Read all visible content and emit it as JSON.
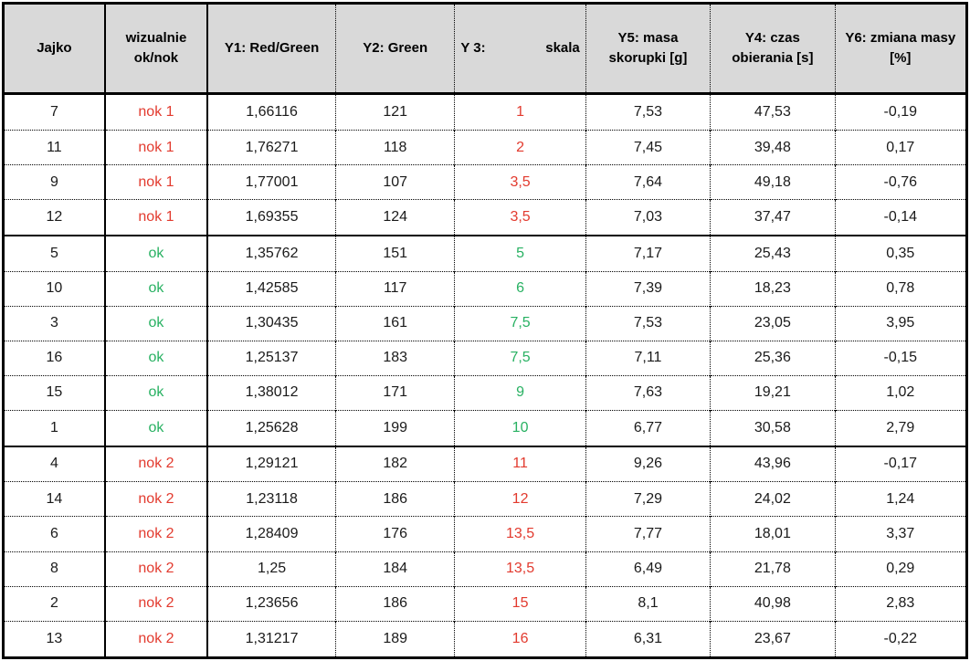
{
  "colors": {
    "red": "#e23a2e",
    "green": "#28b162",
    "header_bg": "#d9d9d9",
    "border": "#000000",
    "text": "#1a1a1a"
  },
  "table": {
    "columns": [
      {
        "id": "jajko",
        "label": "Jajko"
      },
      {
        "id": "visual",
        "label": "wizualnie ok/nok"
      },
      {
        "id": "y1",
        "label": "Y1: Red/Green"
      },
      {
        "id": "y2",
        "label": "Y2: Green"
      },
      {
        "id": "y3",
        "label_left": "Y 3:",
        "label_right": "skala"
      },
      {
        "id": "y5",
        "label": "Y5: masa skorupki [g]"
      },
      {
        "id": "y4",
        "label": "Y4: czas obierania [s]"
      },
      {
        "id": "y6",
        "label": "Y6: zmiana masy [%]"
      }
    ],
    "rows": [
      {
        "group": "nok1",
        "jajko": "7",
        "visual": "nok 1",
        "y1": "1,66116",
        "y2": "121",
        "y3": "1",
        "y5": "7,53",
        "y4": "47,53",
        "y6": "-0,19"
      },
      {
        "group": "nok1",
        "jajko": "11",
        "visual": "nok 1",
        "y1": "1,76271",
        "y2": "118",
        "y3": "2",
        "y5": "7,45",
        "y4": "39,48",
        "y6": "0,17"
      },
      {
        "group": "nok1",
        "jajko": "9",
        "visual": "nok 1",
        "y1": "1,77001",
        "y2": "107",
        "y3": "3,5",
        "y5": "7,64",
        "y4": "49,18",
        "y6": "-0,76"
      },
      {
        "group": "nok1",
        "jajko": "12",
        "visual": "nok 1",
        "y1": "1,69355",
        "y2": "124",
        "y3": "3,5",
        "y5": "7,03",
        "y4": "37,47",
        "y6": "-0,14"
      },
      {
        "group": "ok",
        "jajko": "5",
        "visual": "ok",
        "y1": "1,35762",
        "y2": "151",
        "y3": "5",
        "y5": "7,17",
        "y4": "25,43",
        "y6": "0,35"
      },
      {
        "group": "ok",
        "jajko": "10",
        "visual": "ok",
        "y1": "1,42585",
        "y2": "117",
        "y3": "6",
        "y5": "7,39",
        "y4": "18,23",
        "y6": "0,78"
      },
      {
        "group": "ok",
        "jajko": "3",
        "visual": "ok",
        "y1": "1,30435",
        "y2": "161",
        "y3": "7,5",
        "y5": "7,53",
        "y4": "23,05",
        "y6": "3,95"
      },
      {
        "group": "ok",
        "jajko": "16",
        "visual": "ok",
        "y1": "1,25137",
        "y2": "183",
        "y3": "7,5",
        "y5": "7,11",
        "y4": "25,36",
        "y6": "-0,15"
      },
      {
        "group": "ok",
        "jajko": "15",
        "visual": "ok",
        "y1": "1,38012",
        "y2": "171",
        "y3": "9",
        "y5": "7,63",
        "y4": "19,21",
        "y6": "1,02"
      },
      {
        "group": "ok",
        "jajko": "1",
        "visual": "ok",
        "y1": "1,25628",
        "y2": "199",
        "y3": "10",
        "y5": "6,77",
        "y4": "30,58",
        "y6": "2,79"
      },
      {
        "group": "nok2",
        "jajko": "4",
        "visual": "nok 2",
        "y1": "1,29121",
        "y2": "182",
        "y3": "11",
        "y5": "9,26",
        "y4": "43,96",
        "y6": "-0,17"
      },
      {
        "group": "nok2",
        "jajko": "14",
        "visual": "nok 2",
        "y1": "1,23118",
        "y2": "186",
        "y3": "12",
        "y5": "7,29",
        "y4": "24,02",
        "y6": "1,24"
      },
      {
        "group": "nok2",
        "jajko": "6",
        "visual": "nok 2",
        "y1": "1,28409",
        "y2": "176",
        "y3": "13,5",
        "y5": "7,77",
        "y4": "18,01",
        "y6": "3,37"
      },
      {
        "group": "nok2",
        "jajko": "8",
        "visual": "nok 2",
        "y1": "1,25",
        "y2": "184",
        "y3": "13,5",
        "y5": "6,49",
        "y4": "21,78",
        "y6": "0,29"
      },
      {
        "group": "nok2",
        "jajko": "2",
        "visual": "nok 2",
        "y1": "1,23656",
        "y2": "186",
        "y3": "15",
        "y5": "8,1",
        "y4": "40,98",
        "y6": "2,83"
      },
      {
        "group": "nok2",
        "jajko": "13",
        "visual": "nok 2",
        "y1": "1,31217",
        "y2": "189",
        "y3": "16",
        "y5": "6,31",
        "y4": "23,67",
        "y6": "-0,22"
      }
    ]
  },
  "chart_data": {
    "type": "table",
    "title": "",
    "columns": [
      "Jajko",
      "wizualnie ok/nok",
      "Y1: Red/Green",
      "Y2: Green",
      "Y 3: skala",
      "Y5: masa skorupki [g]",
      "Y4: czas obierania [s]",
      "Y6: zmiana masy [%]"
    ],
    "rows": [
      [
        "7",
        "nok 1",
        "1,66116",
        "121",
        "1",
        "7,53",
        "47,53",
        "-0,19"
      ],
      [
        "11",
        "nok 1",
        "1,76271",
        "118",
        "2",
        "7,45",
        "39,48",
        "0,17"
      ],
      [
        "9",
        "nok 1",
        "1,77001",
        "107",
        "3,5",
        "7,64",
        "49,18",
        "-0,76"
      ],
      [
        "12",
        "nok 1",
        "1,69355",
        "124",
        "3,5",
        "7,03",
        "37,47",
        "-0,14"
      ],
      [
        "5",
        "ok",
        "1,35762",
        "151",
        "5",
        "7,17",
        "25,43",
        "0,35"
      ],
      [
        "10",
        "ok",
        "1,42585",
        "117",
        "6",
        "7,39",
        "18,23",
        "0,78"
      ],
      [
        "3",
        "ok",
        "1,30435",
        "161",
        "7,5",
        "7,53",
        "23,05",
        "3,95"
      ],
      [
        "16",
        "ok",
        "1,25137",
        "183",
        "7,5",
        "7,11",
        "25,36",
        "-0,15"
      ],
      [
        "15",
        "ok",
        "1,38012",
        "171",
        "9",
        "7,63",
        "19,21",
        "1,02"
      ],
      [
        "1",
        "ok",
        "1,25628",
        "199",
        "10",
        "6,77",
        "30,58",
        "2,79"
      ],
      [
        "4",
        "nok 2",
        "1,29121",
        "182",
        "11",
        "9,26",
        "43,96",
        "-0,17"
      ],
      [
        "14",
        "nok 2",
        "1,23118",
        "186",
        "12",
        "7,29",
        "24,02",
        "1,24"
      ],
      [
        "6",
        "nok 2",
        "1,28409",
        "176",
        "13,5",
        "7,77",
        "18,01",
        "3,37"
      ],
      [
        "8",
        "nok 2",
        "1,25",
        "184",
        "13,5",
        "6,49",
        "21,78",
        "0,29"
      ],
      [
        "2",
        "nok 2",
        "1,23656",
        "186",
        "15",
        "8,1",
        "40,98",
        "2,83"
      ],
      [
        "13",
        "nok 2",
        "1,31217",
        "189",
        "16",
        "6,31",
        "23,67",
        "-0,22"
      ]
    ]
  }
}
